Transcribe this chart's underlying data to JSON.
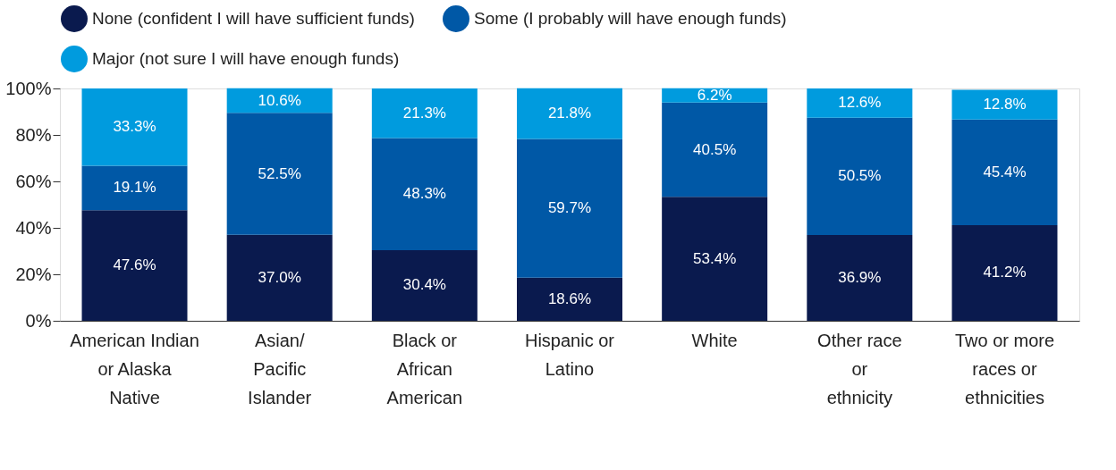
{
  "chart_data": {
    "type": "bar",
    "stacked": true,
    "legend": "top",
    "grid": false,
    "categories": [
      "American Indian\nor Alaska\nNative",
      "Asian/\nPacific\nIslander",
      "Black or\nAfrican\nAmerican",
      "Hispanic or\nLatino",
      "White",
      "Other race\nor\nethnicity",
      "Two or more\nraces or\nethnicities"
    ],
    "ylim": [
      0,
      100
    ],
    "yticks": [
      {
        "value": 0,
        "label": "0%"
      },
      {
        "value": 20,
        "label": "20%"
      },
      {
        "value": 40,
        "label": "40%"
      },
      {
        "value": 60,
        "label": "60%"
      },
      {
        "value": 80,
        "label": "80%"
      },
      {
        "value": 100,
        "label": "100%"
      }
    ],
    "series": [
      {
        "name": "None (confident I will have sufficient funds)",
        "color": "#0a1a4e",
        "values": [
          47.6,
          37.0,
          30.4,
          18.6,
          53.4,
          36.9,
          41.2
        ],
        "value_labels": [
          "47.6%",
          "37.0%",
          "30.4%",
          "18.6%",
          "53.4%",
          "36.9%",
          "41.2%"
        ]
      },
      {
        "name": "Some (I probably will have enough funds)",
        "color": "#0058a6",
        "values": [
          19.1,
          52.5,
          48.3,
          59.7,
          40.5,
          50.5,
          45.4
        ],
        "value_labels": [
          "19.1%",
          "52.5%",
          "48.3%",
          "59.7%",
          "40.5%",
          "50.5%",
          "45.4%"
        ]
      },
      {
        "name": "Major (not sure I will have enough funds)",
        "color": "#009bde",
        "values": [
          33.3,
          10.6,
          21.3,
          21.8,
          6.2,
          12.6,
          12.8
        ],
        "value_labels": [
          "33.3%",
          "10.6%",
          "21.3%",
          "21.8%",
          "6.2%",
          "12.6%",
          "12.8%"
        ]
      }
    ]
  }
}
